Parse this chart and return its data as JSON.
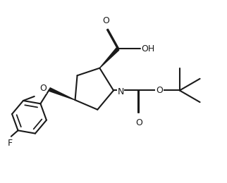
{
  "background": "#ffffff",
  "line_color": "#1a1a1a",
  "line_width": 1.5,
  "font_size": 9,
  "figsize": [
    3.22,
    2.6
  ],
  "dpi": 100,
  "xlim": [
    -1.5,
    8.5
  ],
  "ylim": [
    -1.5,
    7.0
  ]
}
